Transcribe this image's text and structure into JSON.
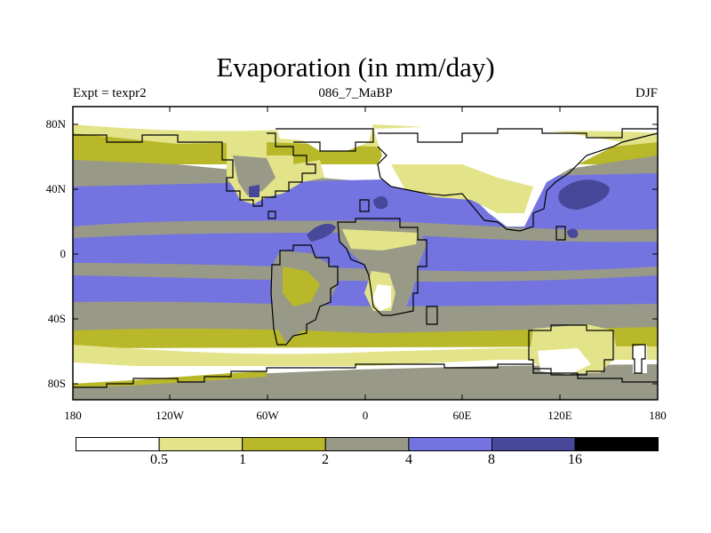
{
  "title": "Evaporation (in mm/day)",
  "experiment": "Expt = texpr2",
  "run": "086_7_MaBP",
  "season": "DJF",
  "lat_labels": [
    "80N",
    "40N",
    "0",
    "40S",
    "80S"
  ],
  "lon_labels": [
    "180",
    "120W",
    "60W",
    "0",
    "60E",
    "120E",
    "180"
  ],
  "colorbar": {
    "levels": [
      "0.5",
      "1",
      "2",
      "4",
      "8",
      "16"
    ],
    "colors": [
      "#ffffff",
      "#e3e38a",
      "#b8b82a",
      "#999988",
      "#7374e0",
      "#48489a",
      "#000000"
    ]
  },
  "map": {
    "ocean_color": "#7374e0",
    "tropical_ocean_color": "#999988",
    "subtropical_color": "#b8b82a",
    "dry_color": "#e3e38a",
    "very_dry_color": "#ffffff",
    "max_color": "#48489a"
  }
}
